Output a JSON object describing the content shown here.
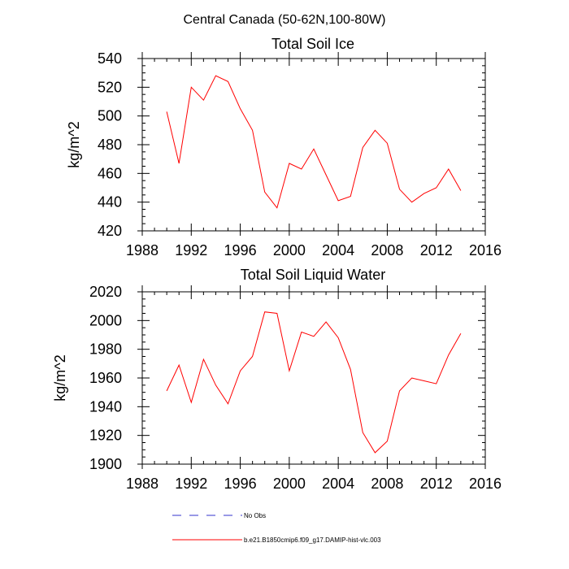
{
  "figure": {
    "suptitle": "Central Canada (50-62N,100-80W)"
  },
  "legend": {
    "entries": [
      {
        "label": "No Obs",
        "color": "#3333cc",
        "style": "dashed"
      },
      {
        "label": "b.e21.B1850cmip6.f09_g17.DAMIP-hist-vlc.003",
        "color": "#ff0000",
        "style": "solid"
      }
    ]
  },
  "chart_data": [
    {
      "type": "line",
      "title": "Total Soil Ice",
      "ylabel": "kg/m^2",
      "xlabel": "",
      "xlim": [
        1988,
        2016
      ],
      "ylim": [
        420,
        540
      ],
      "xticks": [
        1988,
        1992,
        1996,
        2000,
        2004,
        2008,
        2012,
        2016
      ],
      "yticks": [
        420,
        440,
        460,
        480,
        500,
        520,
        540
      ],
      "series": [
        {
          "color": "#ff0000",
          "x": [
            1990,
            1991,
            1992,
            1993,
            1994,
            1995,
            1996,
            1997,
            1998,
            1999,
            2000,
            2001,
            2002,
            2003,
            2004,
            2005,
            2006,
            2007,
            2008,
            2009,
            2010,
            2011,
            2012,
            2013,
            2014
          ],
          "values": [
            503,
            467,
            520,
            511,
            528,
            524,
            505,
            490,
            447,
            436,
            467,
            463,
            477,
            459,
            441,
            444,
            478,
            490,
            481,
            449,
            440,
            446,
            450,
            463,
            448
          ]
        }
      ]
    },
    {
      "type": "line",
      "title": "Total Soil Liquid Water",
      "ylabel": "kg/m^2",
      "xlabel": "",
      "xlim": [
        1988,
        2016
      ],
      "ylim": [
        1900,
        2020
      ],
      "xticks": [
        1988,
        1992,
        1996,
        2000,
        2004,
        2008,
        2012,
        2016
      ],
      "yticks": [
        1900,
        1920,
        1940,
        1960,
        1980,
        2000,
        2020
      ],
      "series": [
        {
          "color": "#ff0000",
          "x": [
            1990,
            1991,
            1992,
            1993,
            1994,
            1995,
            1996,
            1997,
            1998,
            1999,
            2000,
            2001,
            2002,
            2003,
            2004,
            2005,
            2006,
            2007,
            2008,
            2009,
            2010,
            2011,
            2012,
            2013,
            2014
          ],
          "values": [
            1951,
            1969,
            1943,
            1973,
            1955,
            1942,
            1965,
            1975,
            2006,
            2005,
            1965,
            1992,
            1989,
            1999,
            1988,
            1966,
            1922,
            1908,
            1916,
            1951,
            1960,
            1958,
            1956,
            1976,
            1991
          ]
        }
      ]
    }
  ]
}
